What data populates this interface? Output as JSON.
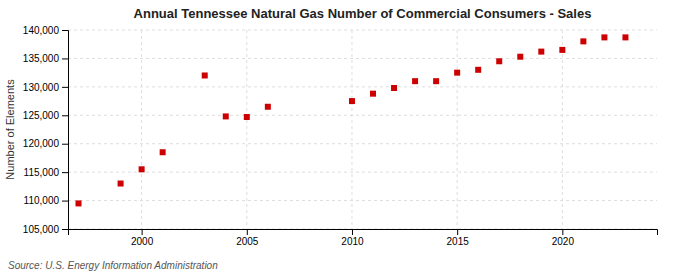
{
  "chart_data": {
    "type": "scatter",
    "title": "Annual Tennessee Natural Gas Number of Commercial Consumers - Sales",
    "ylabel": "Number of Elements",
    "source": "Source: U.S. Energy Information Administration",
    "color": "#cc0000",
    "marker": "square",
    "grid": true,
    "x": [
      1997,
      1999,
      2000,
      2001,
      2003,
      2004,
      2005,
      2006,
      2010,
      2011,
      2012,
      2013,
      2014,
      2015,
      2016,
      2017,
      2018,
      2019,
      2020,
      2021,
      2022,
      2023
    ],
    "values": [
      109500,
      113000,
      115500,
      118500,
      132000,
      124800,
      124700,
      126500,
      127500,
      128800,
      129800,
      131000,
      131000,
      132500,
      133000,
      134500,
      135300,
      136200,
      136500,
      138000,
      138700,
      138700
    ],
    "xlim": [
      1996.5,
      2024.5
    ],
    "xticks": [
      2000,
      2005,
      2010,
      2015,
      2020
    ],
    "ylim": [
      105000,
      140000
    ],
    "yticks": [
      {
        "value": 105000,
        "label": "105,000"
      },
      {
        "value": 110000,
        "label": "110,000"
      },
      {
        "value": 115000,
        "label": "115,000"
      },
      {
        "value": 120000,
        "label": "120,000"
      },
      {
        "value": 125000,
        "label": "125,000"
      },
      {
        "value": 130000,
        "label": "130,000"
      },
      {
        "value": 135000,
        "label": "135,000"
      },
      {
        "value": 140000,
        "label": "140,000"
      }
    ]
  }
}
